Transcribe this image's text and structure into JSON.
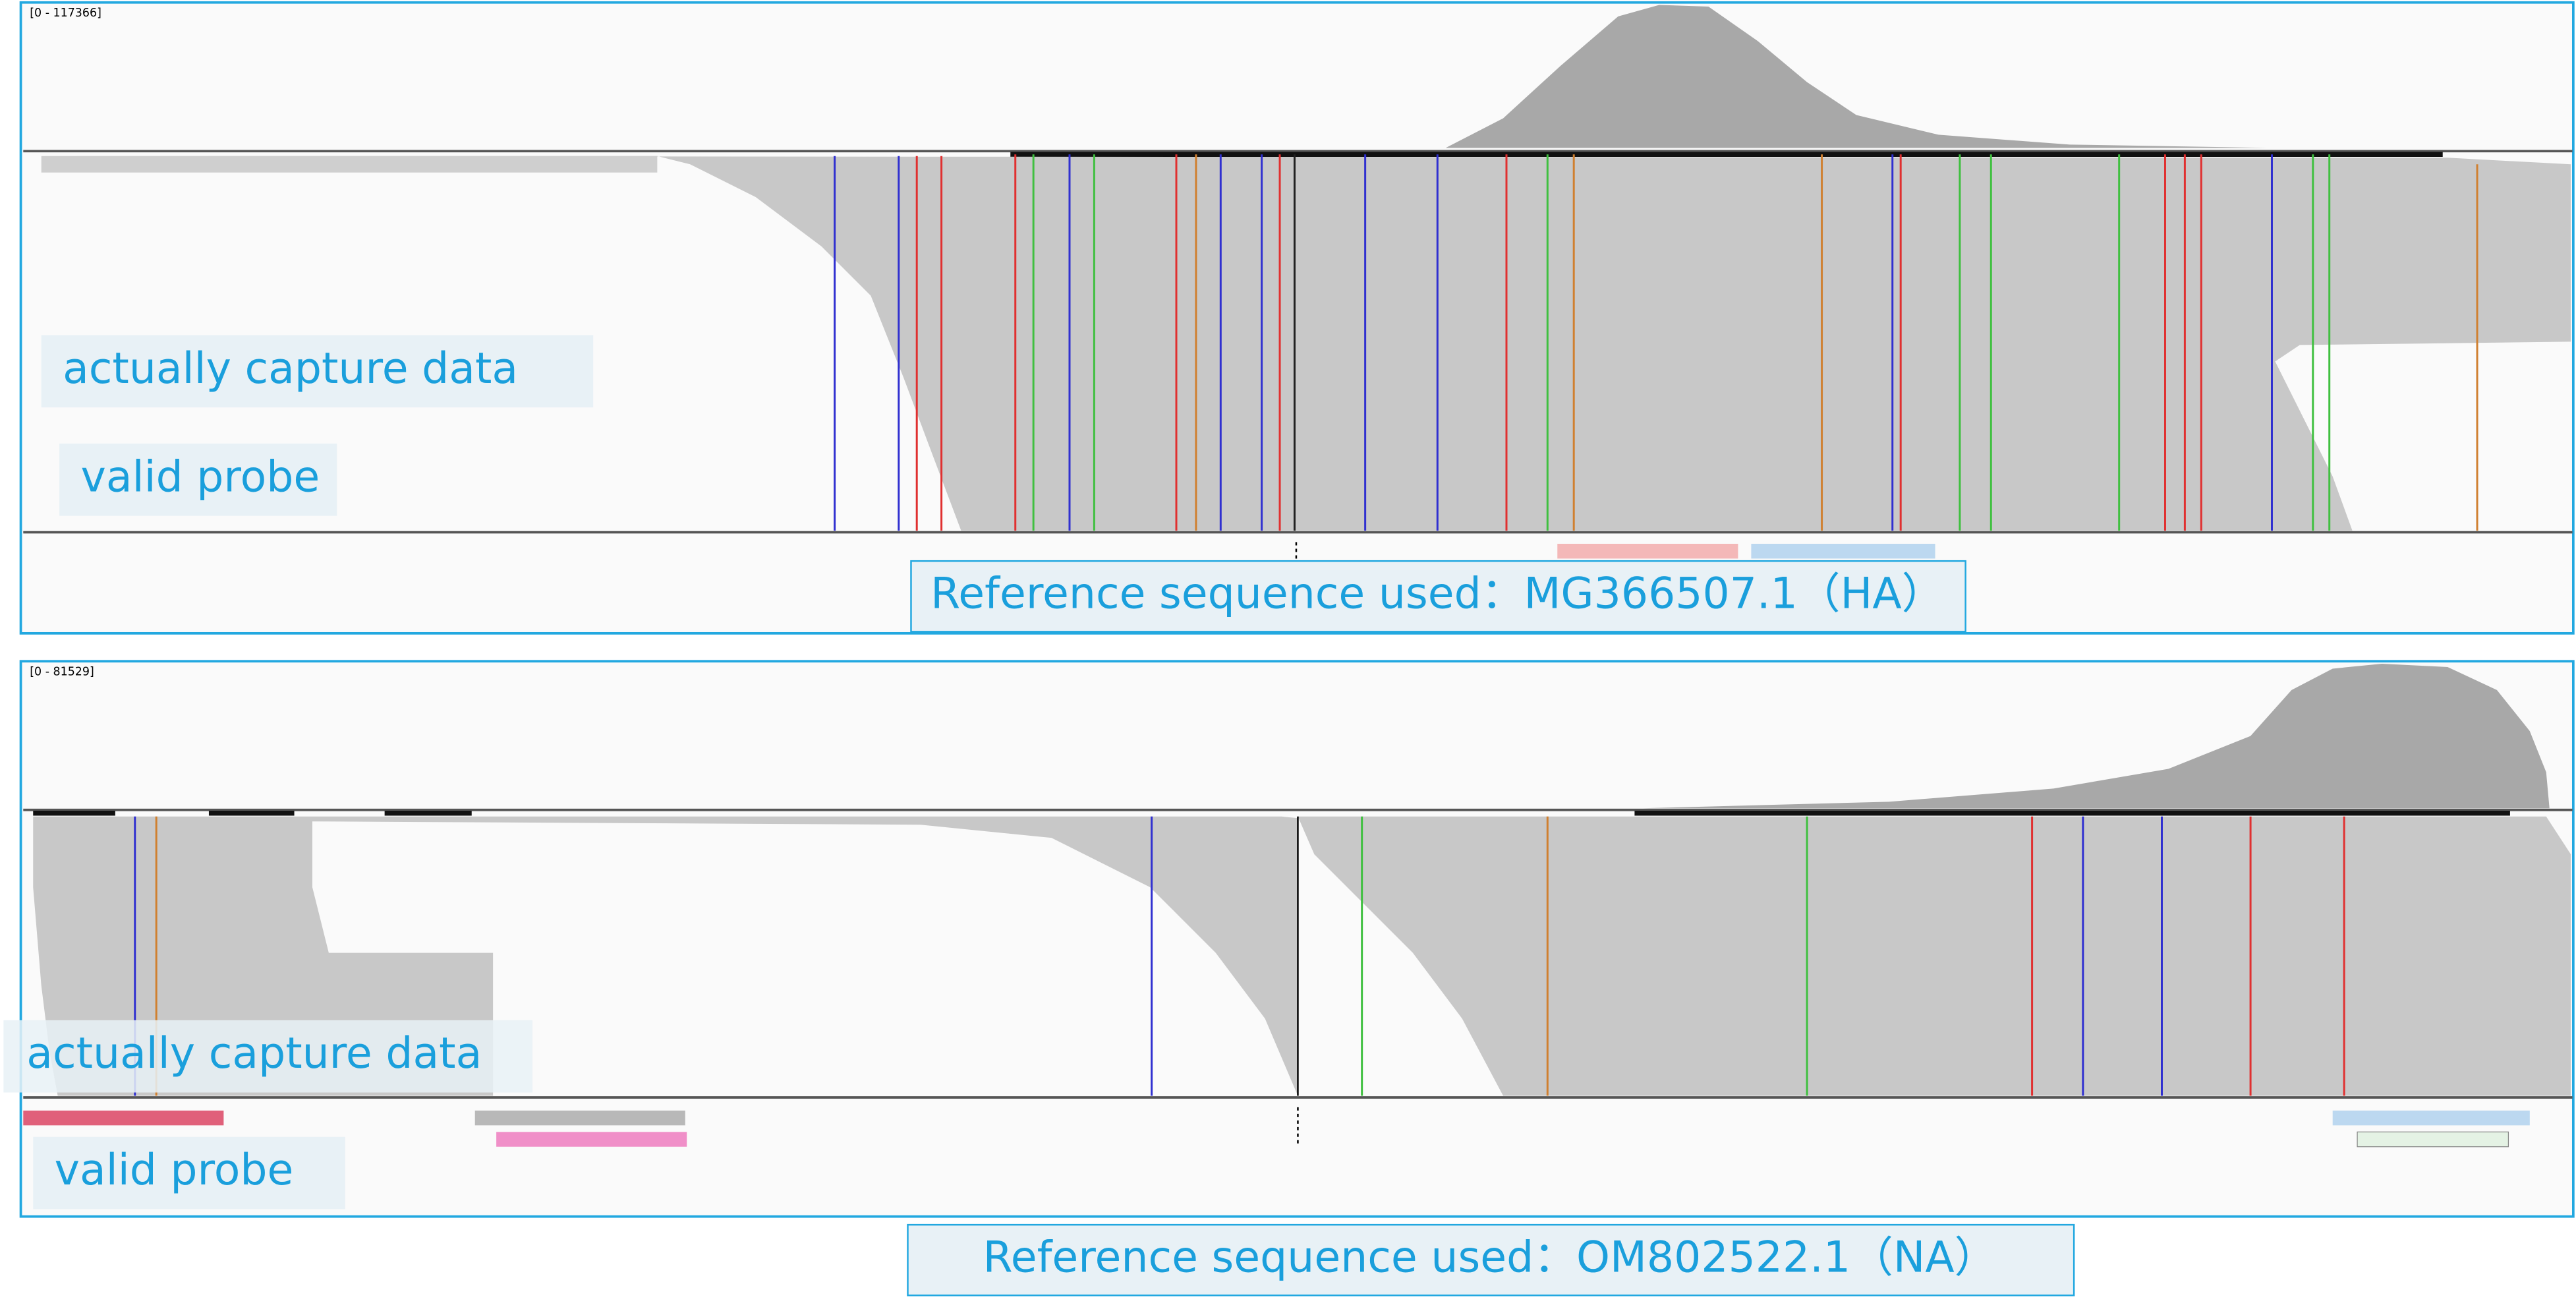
{
  "panels": [
    {
      "range": "[0 - 117366]",
      "capture_label": "actually capture data",
      "probe_label": "valid probe",
      "reference": "Reference sequence used：MG366507.1（HA）"
    },
    {
      "range": "[0 - 81529]",
      "capture_label": "actually capture data",
      "probe_label": "valid probe",
      "reference": "Reference sequence used：OM802522.1（NA）"
    }
  ]
}
